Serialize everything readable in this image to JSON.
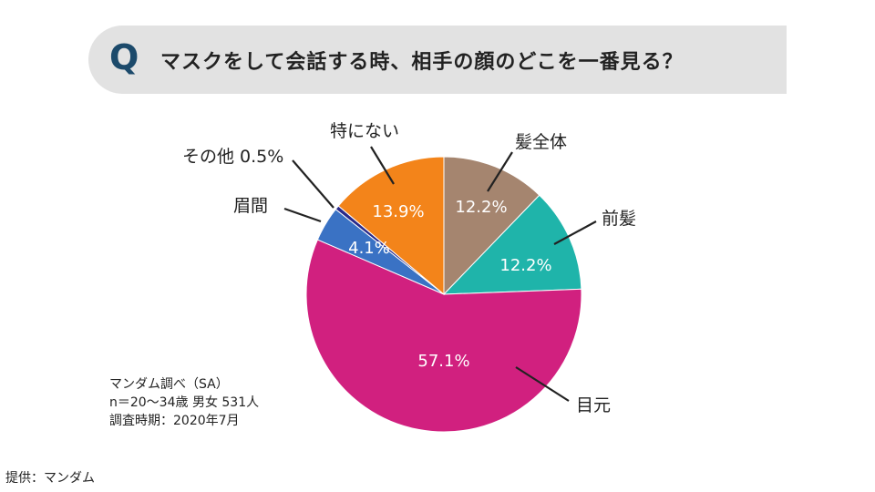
{
  "header": {
    "q_letter": "Q",
    "question": "マスクをして会話する時、相手の顔のどこを一番見る？"
  },
  "chart_data": {
    "type": "pie",
    "title": "マスクをして会話する時、相手の顔のどこを一番見る？",
    "unit": "%",
    "slices": [
      {
        "name": "髪全体",
        "value": 12.2,
        "label": "12.2%",
        "color": "#a5856f"
      },
      {
        "name": "前髪",
        "value": 12.2,
        "label": "12.2%",
        "color": "#1fb4aa"
      },
      {
        "name": "目元",
        "value": 57.1,
        "label": "57.1%",
        "color": "#d1207f"
      },
      {
        "name": "眉間",
        "value": 4.1,
        "label": "4.1%",
        "color": "#3a72c4"
      },
      {
        "name": "その他",
        "value": 0.5,
        "label": "0.5%",
        "color": "#2a2a8a"
      },
      {
        "name": "特にない",
        "value": 13.9,
        "label": "13.9%",
        "color": "#f3841a"
      }
    ]
  },
  "callouts": {
    "hair_all": "髪全体",
    "bangs": "前髪",
    "eyes": "目元",
    "brow": "眉間",
    "other": "その他 0.5%",
    "nothing": "特にない"
  },
  "notes": {
    "line1": "マンダム調べ（SA）",
    "line2": "n＝20〜34歳 男女 531人",
    "line3": "調査時期：2020年7月"
  },
  "source": "提供：マンダム"
}
